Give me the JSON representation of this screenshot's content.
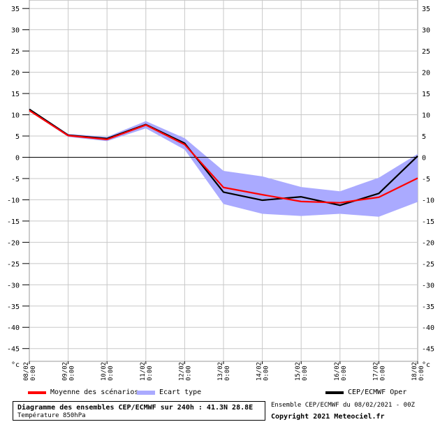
{
  "chart_data": {
    "type": "line",
    "y_unit_label": "°c",
    "ylim": [
      -48,
      37
    ],
    "y_ticks": [
      35,
      30,
      25,
      20,
      15,
      10,
      5,
      0,
      -5,
      -10,
      -15,
      -20,
      -25,
      -30,
      -35,
      -40,
      -45
    ],
    "categories": [
      "08/02 0:00",
      "09/02 0:00",
      "10/02 0:00",
      "11/02 0:00",
      "12/02 0:00",
      "13/02 0:00",
      "14/02 0:00",
      "15/02 0:00",
      "16/02 0:00",
      "17/02 0:00",
      "18/02 0:00"
    ],
    "std_upper": [
      11.5,
      5.5,
      4.8,
      8.5,
      4.5,
      -3.2,
      -4.5,
      -7.0,
      -8.0,
      -4.8,
      0.8
    ],
    "std_lower": [
      10.8,
      4.8,
      3.8,
      6.8,
      1.8,
      -11.0,
      -13.3,
      -13.8,
      -13.3,
      -14.0,
      -10.5
    ],
    "series": [
      {
        "name": "Moyenne des scénarios",
        "color": "#ff0000",
        "values": [
          11.0,
          5.1,
          4.2,
          7.6,
          3.0,
          -7.1,
          -8.8,
          -10.4,
          -10.7,
          -9.4,
          -4.9
        ]
      },
      {
        "name": "CEP/ECMWF Oper",
        "color": "#000000",
        "values": [
          11.3,
          5.2,
          4.4,
          7.7,
          3.3,
          -8.2,
          -10.1,
          -9.3,
          -11.3,
          -8.5,
          0.3
        ]
      }
    ],
    "band_name": "Ecart type",
    "band_color": "#aaaaff",
    "grid": true
  },
  "legend": {
    "mean_label": "Moyenne des scénarios",
    "std_label": "Ecart type",
    "oper_label": "CEP/ECMWF Oper"
  },
  "info": {
    "title": "Diagramme des ensembles CEP/ECMWF sur 240h : 41.3N 28.8E",
    "subtitle": "Température 850hPa",
    "ensemble": "Ensemble CEP/ECMWF du 08/02/2021 - 00Z",
    "copyright": "Copyright 2021 Meteociel.fr"
  }
}
